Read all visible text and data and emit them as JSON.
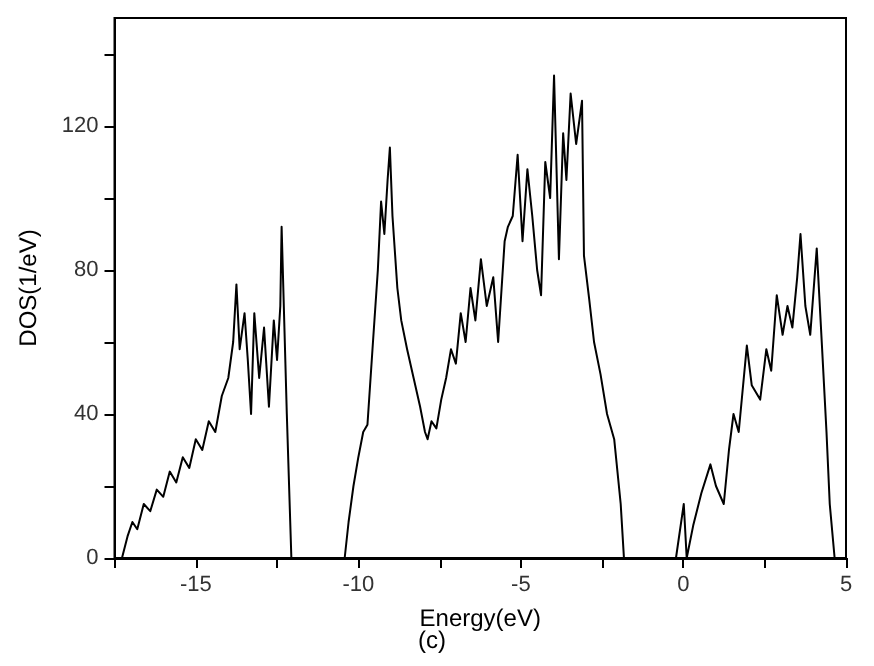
{
  "chart_data": {
    "type": "line",
    "xlabel": "Energy(eV)",
    "ylabel": "DOS(1/eV)",
    "annotations": [
      "(c)"
    ],
    "xlim": [
      -17.5,
      5
    ],
    "ylim": [
      0,
      150
    ],
    "xticks": [
      {
        "value": -17.5,
        "label": null
      },
      -15,
      {
        "value": -12.5,
        "label": null
      },
      -10,
      {
        "value": -7.5,
        "label": null
      },
      -5,
      {
        "value": -2.5,
        "label": null
      },
      0,
      {
        "value": 2.5,
        "label": null
      },
      5
    ],
    "yticks": [
      0,
      {
        "value": 20,
        "label": null
      },
      40,
      {
        "value": 60,
        "label": null
      },
      80,
      {
        "value": 100,
        "label": null
      },
      120,
      {
        "value": 140,
        "label": null
      }
    ],
    "grid": false,
    "marker": "none",
    "line_style": "solid",
    "series": [
      {
        "color": "#000000",
        "x": [
          -17.27,
          -17.1,
          -16.95,
          -16.8,
          -16.6,
          -16.4,
          -16.2,
          -16.0,
          -15.8,
          -15.6,
          -15.4,
          -15.2,
          -15.0,
          -14.8,
          -14.6,
          -14.4,
          -14.2,
          -14.0,
          -13.85,
          -13.75,
          -13.65,
          -13.5,
          -13.4,
          -13.3,
          -13.2,
          -13.05,
          -12.9,
          -12.75,
          -12.6,
          -12.5,
          -12.4,
          -12.36,
          -12.2,
          -12.06,
          -10.42,
          -10.3,
          -10.15,
          -10.0,
          -9.85,
          -9.72,
          -9.55,
          -9.4,
          -9.3,
          -9.2,
          -9.1,
          -9.03,
          -8.95,
          -8.8,
          -8.68,
          -8.5,
          -8.3,
          -8.1,
          -7.95,
          -7.87,
          -7.75,
          -7.6,
          -7.45,
          -7.3,
          -7.15,
          -7.0,
          -6.85,
          -6.7,
          -6.55,
          -6.4,
          -6.23,
          -6.05,
          -5.85,
          -5.7,
          -5.5,
          -5.4,
          -5.25,
          -5.1,
          -4.95,
          -4.8,
          -4.65,
          -4.5,
          -4.38,
          -4.25,
          -4.1,
          -3.98,
          -3.83,
          -3.7,
          -3.6,
          -3.47,
          -3.3,
          -3.12,
          -3.06,
          -2.9,
          -2.75,
          -2.55,
          -2.35,
          -2.13,
          -1.93,
          -1.83,
          -0.23,
          0.01,
          0.1,
          0.3,
          0.55,
          0.83,
          1.0,
          1.24,
          1.4,
          1.54,
          1.7,
          1.95,
          2.1,
          2.36,
          2.55,
          2.7,
          2.87,
          3.05,
          3.2,
          3.35,
          3.5,
          3.6,
          3.75,
          3.9,
          4.1,
          4.26,
          4.4,
          4.5,
          4.65
        ],
        "values": [
          0,
          6,
          10,
          8,
          15,
          13,
          19,
          17,
          24,
          21,
          28,
          25,
          33,
          30,
          38,
          35,
          45,
          50,
          60,
          76,
          58,
          68,
          55,
          40,
          68,
          50,
          64,
          42,
          66,
          55,
          70,
          92,
          40,
          0,
          0,
          10,
          20,
          28,
          35,
          37,
          60,
          80,
          99,
          90,
          105,
          114,
          95,
          75,
          66,
          58,
          50,
          42,
          35,
          33,
          38,
          36,
          44,
          50,
          58,
          54,
          68,
          60,
          75,
          66,
          83,
          70,
          78,
          60,
          88,
          92,
          95,
          112,
          88,
          108,
          95,
          80,
          73,
          110,
          100,
          134,
          83,
          118,
          105,
          129,
          115,
          127,
          84,
          72,
          60,
          51,
          40,
          33,
          15,
          0,
          0,
          15,
          0,
          9,
          18,
          26,
          20,
          15,
          30,
          40,
          35,
          59,
          48,
          44,
          58,
          52,
          73,
          62,
          70,
          64,
          78,
          90,
          70,
          62,
          86,
          59,
          35,
          15,
          0
        ]
      }
    ]
  }
}
